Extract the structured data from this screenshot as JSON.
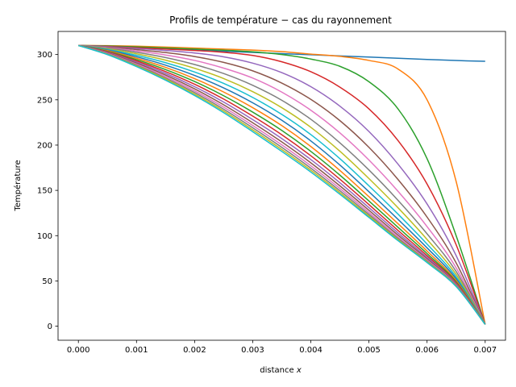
{
  "chart_data": {
    "type": "line",
    "title": "Profils de température − cas du rayonnement",
    "xlabel_main": "distance ",
    "xlabel_var": "x",
    "ylabel": "Température",
    "xlim": [
      -0.00035,
      0.00735
    ],
    "ylim": [
      -15.5,
      325.5
    ],
    "xticks": [
      0.0,
      0.001,
      0.002,
      0.003,
      0.004,
      0.005,
      0.006,
      0.007
    ],
    "xtick_labels": [
      "0.000",
      "0.001",
      "0.002",
      "0.003",
      "0.004",
      "0.005",
      "0.006",
      "0.007"
    ],
    "yticks": [
      0,
      50,
      100,
      150,
      200,
      250,
      300
    ],
    "ytick_labels": [
      "0",
      "50",
      "100",
      "150",
      "200",
      "250",
      "300"
    ],
    "grid": false,
    "legend": "none",
    "x": [
      0,
      0.0005,
      0.001,
      0.0015,
      0.002,
      0.0025,
      0.003,
      0.0035,
      0.004,
      0.0045,
      0.005,
      0.0055,
      0.006,
      0.0065,
      0.007
    ],
    "series": [
      {
        "color": "#1f77b4",
        "values": [
          310,
          308.7,
          307.4,
          306.2,
          304.9,
          303.6,
          302.3,
          301.0,
          299.8,
          298.5,
          297.2,
          295.9,
          294.6,
          293.4,
          292.5
        ]
      },
      {
        "color": "#ff7f0e",
        "values": [
          310,
          309.8,
          309.2,
          308.2,
          307.1,
          306.0,
          304.9,
          303.2,
          300.5,
          298.0,
          293.5,
          284.0,
          250.0,
          160.0,
          2
        ]
      },
      {
        "color": "#2ca02c",
        "values": [
          310,
          309.5,
          308.5,
          307.3,
          306.0,
          304.8,
          303.0,
          300.0,
          295.0,
          287.0,
          270.0,
          240.0,
          185.0,
          100.0,
          2
        ]
      },
      {
        "color": "#d62728",
        "values": [
          310,
          309.0,
          307.5,
          306.0,
          304.5,
          302.5,
          299.0,
          292.0,
          281.0,
          264.0,
          240.0,
          205.0,
          157.0,
          90.0,
          2
        ]
      },
      {
        "color": "#9467bd",
        "values": [
          310,
          308.7,
          306.7,
          304.5,
          301.7,
          297.5,
          290.5,
          280.0,
          264.5,
          243.0,
          215.0,
          179.0,
          135.0,
          78.0,
          2
        ]
      },
      {
        "color": "#8c564b",
        "values": [
          310,
          308.2,
          305.5,
          302.2,
          297.8,
          291.3,
          282.0,
          268.5,
          250.5,
          227.0,
          197.5,
          162.0,
          120.5,
          70.0,
          2
        ]
      },
      {
        "color": "#e377c2",
        "values": [
          310,
          307.6,
          304.0,
          299.5,
          293.5,
          285.0,
          274.0,
          258.5,
          238.5,
          213.5,
          183.5,
          149.0,
          110.0,
          64.5,
          2
        ]
      },
      {
        "color": "#7f7f7f",
        "values": [
          310,
          307.0,
          302.5,
          296.7,
          289.0,
          279.0,
          266.0,
          249.5,
          228.5,
          202.5,
          172.5,
          139.0,
          102.0,
          60.5,
          2
        ]
      },
      {
        "color": "#bcbd22",
        "values": [
          310,
          306.3,
          300.8,
          293.8,
          284.8,
          273.5,
          259.0,
          241.3,
          219.6,
          193.2,
          163.0,
          130.8,
          95.8,
          57.2,
          2
        ]
      },
      {
        "color": "#17becf",
        "values": [
          310,
          305.6,
          299.1,
          291.0,
          280.7,
          268.1,
          252.6,
          233.9,
          211.6,
          185.0,
          155.0,
          123.8,
          90.7,
          54.5,
          2
        ]
      },
      {
        "color": "#1f77b4",
        "values": [
          310,
          304.9,
          297.5,
          288.3,
          276.9,
          263.1,
          246.7,
          227.4,
          204.6,
          178.0,
          148.5,
          118.0,
          86.5,
          52.3,
          2
        ]
      },
      {
        "color": "#ff7f0e",
        "values": [
          310,
          304.2,
          295.9,
          285.8,
          273.4,
          258.6,
          241.3,
          221.5,
          198.4,
          172.0,
          143.0,
          113.2,
          83.0,
          50.5,
          2
        ]
      },
      {
        "color": "#2ca02c",
        "values": [
          310,
          303.5,
          294.4,
          283.4,
          270.2,
          254.5,
          236.4,
          216.2,
          193.0,
          166.8,
          138.3,
          109.2,
          80.2,
          49.0,
          2
        ]
      },
      {
        "color": "#d62728",
        "values": [
          310,
          302.9,
          293.0,
          281.2,
          267.2,
          250.8,
          232.0,
          211.4,
          188.2,
          162.3,
          134.3,
          105.8,
          77.9,
          47.8,
          2
        ]
      },
      {
        "color": "#9467bd",
        "values": [
          310,
          302.3,
          291.7,
          279.2,
          264.5,
          247.5,
          228.1,
          207.2,
          184.0,
          158.4,
          130.9,
          103.0,
          76.0,
          46.8,
          2
        ]
      },
      {
        "color": "#8c564b",
        "values": [
          310,
          301.7,
          290.5,
          277.4,
          262.1,
          244.5,
          224.7,
          203.5,
          180.4,
          155.0,
          128.0,
          100.6,
          74.4,
          46.0,
          2
        ]
      },
      {
        "color": "#e377c2",
        "values": [
          310,
          301.2,
          289.4,
          275.7,
          259.9,
          241.9,
          221.7,
          200.3,
          177.2,
          152.1,
          125.5,
          98.6,
          73.1,
          45.3,
          2
        ]
      },
      {
        "color": "#7f7f7f",
        "values": [
          310,
          300.7,
          288.4,
          274.2,
          258.0,
          239.6,
          219.1,
          197.5,
          174.5,
          149.6,
          123.4,
          97.0,
          72.0,
          44.7,
          2
        ]
      },
      {
        "color": "#bcbd22",
        "values": [
          310,
          300.3,
          287.5,
          272.9,
          256.3,
          237.6,
          216.8,
          195.1,
          172.2,
          147.5,
          121.6,
          95.6,
          71.1,
          44.2,
          2
        ]
      },
      {
        "color": "#17becf",
        "values": [
          310,
          299.9,
          286.7,
          271.7,
          254.8,
          235.8,
          214.8,
          193.0,
          170.2,
          145.7,
          120.1,
          94.5,
          70.3,
          43.8,
          2
        ]
      }
    ]
  }
}
